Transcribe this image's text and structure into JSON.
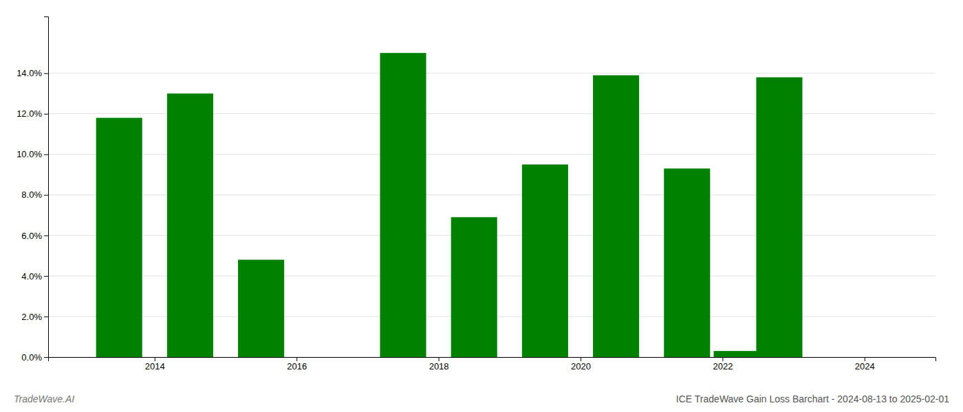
{
  "chart_data": {
    "type": "bar",
    "title": "ICE TradeWave Gain Loss Barchart - 2024-08-13 to 2025-02-01",
    "watermark": "TradeWave.AI",
    "x": [
      2013.5,
      2014.5,
      2015.5,
      2017.5,
      2018.5,
      2019.5,
      2020.5,
      2021.5,
      2022.2,
      2022.8
    ],
    "values": [
      0.118,
      0.13,
      0.048,
      0.15,
      0.069,
      0.095,
      0.139,
      0.093,
      0.003,
      0.138
    ],
    "color": "#008000",
    "xlim": [
      2012.5,
      2025.0
    ],
    "ylim": [
      0,
      0.168
    ],
    "xticks": [
      2014,
      2016,
      2018,
      2020,
      2022,
      2024
    ],
    "yticks": [
      {
        "value": 0.0,
        "label": "0.0%"
      },
      {
        "value": 0.02,
        "label": "2.0%"
      },
      {
        "value": 0.04,
        "label": "4.0%"
      },
      {
        "value": 0.06,
        "label": "6.0%"
      },
      {
        "value": 0.08,
        "label": "8.0%"
      },
      {
        "value": 0.1,
        "label": "10.0%"
      },
      {
        "value": 0.12,
        "label": "12.0%"
      },
      {
        "value": 0.14,
        "label": "14.0%"
      }
    ],
    "grid": true
  }
}
